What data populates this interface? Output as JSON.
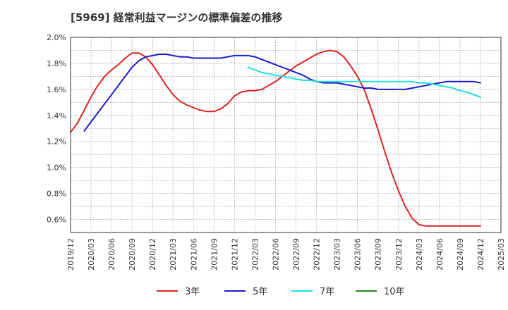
{
  "chart_data": {
    "type": "line",
    "title": "[5969]  経常利益マージンの標準偏差の推移",
    "x_categories": [
      "2019/12",
      "2020/03",
      "2020/06",
      "2020/09",
      "2020/12",
      "2021/03",
      "2021/06",
      "2021/09",
      "2021/12",
      "2022/03",
      "2022/06",
      "2022/09",
      "2022/12",
      "2023/03",
      "2023/06",
      "2023/09",
      "2023/12",
      "2024/03",
      "2024/06",
      "2024/09",
      "2024/12",
      "2025/03"
    ],
    "y_ticks": [
      "0.6%",
      "0.8%",
      "1.0%",
      "1.2%",
      "1.4%",
      "1.6%",
      "1.8%",
      "2.0%"
    ],
    "ylim": [
      0.5,
      2.0
    ],
    "grid": true,
    "legend_position": "bottom",
    "series": [
      {
        "name": "3年",
        "color": "#dd2222",
        "x": [
          "2019/12",
          "2020/01",
          "2020/02",
          "2020/03",
          "2020/04",
          "2020/05",
          "2020/06",
          "2020/07",
          "2020/08",
          "2020/09",
          "2020/10",
          "2020/11",
          "2020/12",
          "2021/01",
          "2021/02",
          "2021/03",
          "2021/04",
          "2021/05",
          "2021/06",
          "2021/07",
          "2021/08",
          "2021/09",
          "2021/10",
          "2021/11",
          "2021/12",
          "2022/01",
          "2022/02",
          "2022/03",
          "2022/04",
          "2022/05",
          "2022/06",
          "2022/07",
          "2022/08",
          "2022/09",
          "2022/10",
          "2022/11",
          "2022/12",
          "2023/01",
          "2023/02",
          "2023/03",
          "2023/04",
          "2023/05",
          "2023/06",
          "2023/07",
          "2023/08",
          "2023/09",
          "2023/10",
          "2023/11",
          "2023/12",
          "2024/01",
          "2024/02",
          "2024/03",
          "2024/04",
          "2024/05",
          "2024/06",
          "2024/07",
          "2024/08",
          "2024/09",
          "2024/10",
          "2024/11",
          "2024/12"
        ],
        "values": [
          1.27,
          1.34,
          1.44,
          1.54,
          1.63,
          1.7,
          1.75,
          1.79,
          1.84,
          1.88,
          1.88,
          1.85,
          1.79,
          1.71,
          1.63,
          1.56,
          1.51,
          1.48,
          1.46,
          1.44,
          1.43,
          1.43,
          1.45,
          1.49,
          1.55,
          1.58,
          1.59,
          1.59,
          1.6,
          1.63,
          1.66,
          1.7,
          1.74,
          1.78,
          1.81,
          1.84,
          1.87,
          1.89,
          1.9,
          1.89,
          1.85,
          1.78,
          1.7,
          1.6,
          1.45,
          1.29,
          1.12,
          0.96,
          0.82,
          0.7,
          0.61,
          0.56,
          0.55,
          0.55,
          0.55,
          0.55,
          0.55,
          0.55,
          0.55,
          0.55,
          0.55
        ]
      },
      {
        "name": "5年",
        "color": "#1a1acc",
        "x": [
          "2020/02",
          "2020/03",
          "2020/04",
          "2020/05",
          "2020/06",
          "2020/07",
          "2020/08",
          "2020/09",
          "2020/10",
          "2020/11",
          "2020/12",
          "2021/01",
          "2021/02",
          "2021/03",
          "2021/04",
          "2021/05",
          "2021/06",
          "2021/07",
          "2021/08",
          "2021/09",
          "2021/10",
          "2021/11",
          "2021/12",
          "2022/01",
          "2022/02",
          "2022/03",
          "2022/04",
          "2022/05",
          "2022/06",
          "2022/07",
          "2022/08",
          "2022/09",
          "2022/10",
          "2022/11",
          "2022/12",
          "2023/01",
          "2023/02",
          "2023/03",
          "2023/04",
          "2023/05",
          "2023/06",
          "2023/07",
          "2023/08",
          "2023/09",
          "2023/10",
          "2023/11",
          "2023/12",
          "2024/01",
          "2024/02",
          "2024/03",
          "2024/04",
          "2024/05",
          "2024/06",
          "2024/07",
          "2024/08",
          "2024/09",
          "2024/10",
          "2024/11",
          "2024/12"
        ],
        "values": [
          1.28,
          1.35,
          1.42,
          1.49,
          1.56,
          1.63,
          1.7,
          1.77,
          1.82,
          1.85,
          1.86,
          1.87,
          1.87,
          1.86,
          1.85,
          1.85,
          1.84,
          1.84,
          1.84,
          1.84,
          1.84,
          1.85,
          1.86,
          1.86,
          1.86,
          1.85,
          1.83,
          1.81,
          1.79,
          1.77,
          1.75,
          1.73,
          1.71,
          1.68,
          1.66,
          1.65,
          1.65,
          1.65,
          1.64,
          1.63,
          1.62,
          1.61,
          1.61,
          1.6,
          1.6,
          1.6,
          1.6,
          1.6,
          1.61,
          1.62,
          1.63,
          1.64,
          1.65,
          1.66,
          1.66,
          1.66,
          1.66,
          1.66,
          1.65
        ]
      },
      {
        "name": "7年",
        "color": "#22dddd",
        "x": [
          "2022/02",
          "2022/03",
          "2022/04",
          "2022/05",
          "2022/06",
          "2022/07",
          "2022/08",
          "2022/09",
          "2022/10",
          "2022/11",
          "2022/12",
          "2023/01",
          "2023/02",
          "2023/03",
          "2023/04",
          "2023/05",
          "2023/06",
          "2023/07",
          "2023/08",
          "2023/09",
          "2023/10",
          "2023/11",
          "2023/12",
          "2024/01",
          "2024/02",
          "2024/03",
          "2024/04",
          "2024/05",
          "2024/06",
          "2024/07",
          "2024/08",
          "2024/09",
          "2024/10",
          "2024/11",
          "2024/12"
        ],
        "values": [
          1.77,
          1.75,
          1.73,
          1.72,
          1.71,
          1.7,
          1.69,
          1.68,
          1.67,
          1.67,
          1.66,
          1.66,
          1.66,
          1.66,
          1.66,
          1.66,
          1.66,
          1.66,
          1.66,
          1.66,
          1.66,
          1.66,
          1.66,
          1.66,
          1.66,
          1.65,
          1.65,
          1.64,
          1.63,
          1.62,
          1.61,
          1.59,
          1.58,
          1.56,
          1.54
        ]
      },
      {
        "name": "10年",
        "color": "#228822",
        "x": [],
        "values": []
      }
    ]
  }
}
